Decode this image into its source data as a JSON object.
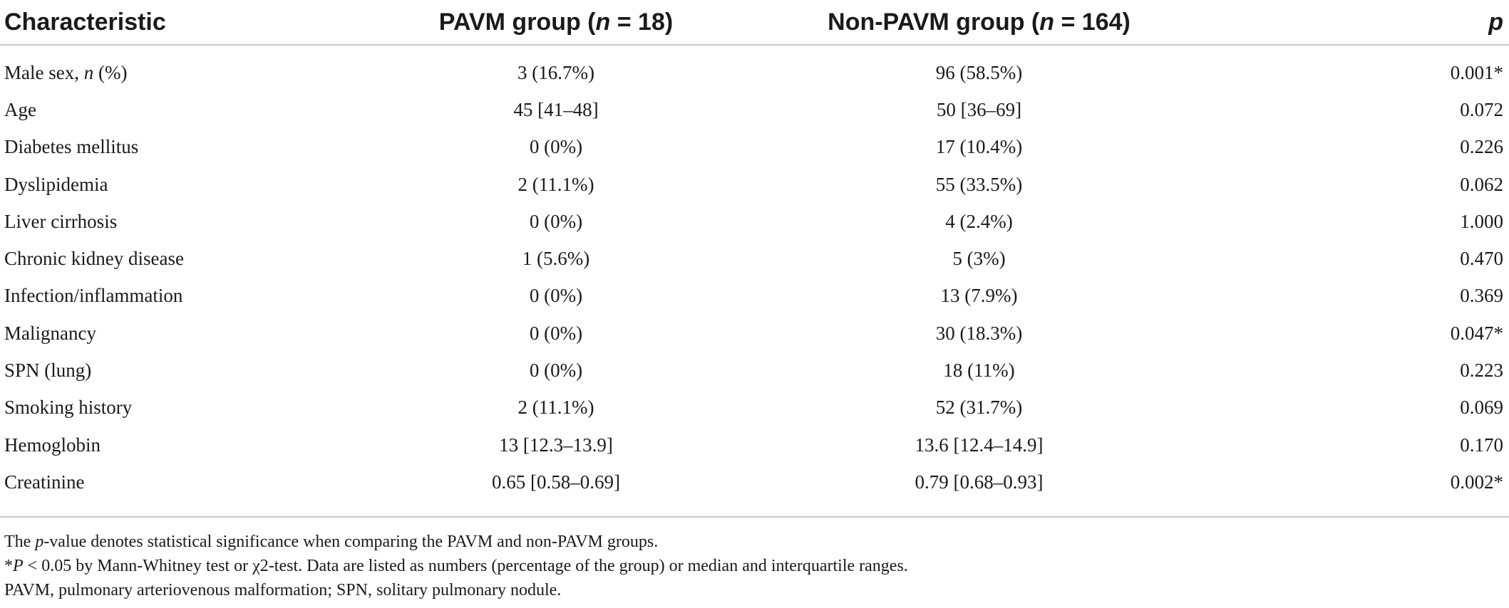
{
  "table": {
    "headers": {
      "characteristic": "Characteristic",
      "pavm_prefix": "PAVM group (",
      "pavm_n": "n",
      "pavm_suffix": " = 18)",
      "non_prefix": "Non-PAVM group (",
      "non_n": "n",
      "non_suffix": " = 164)",
      "p": "p"
    },
    "rows": [
      {
        "characteristic": "Male sex, ",
        "char_italic": "n",
        "char_suffix": " (%)",
        "pavm": "3 (16.7%)",
        "non_pavm": "96 (58.5%)",
        "p": "0.001*"
      },
      {
        "characteristic": "Age",
        "pavm": "45 [41–48]",
        "non_pavm": "50 [36–69]",
        "p": "0.072"
      },
      {
        "characteristic": "Diabetes mellitus",
        "pavm": "0 (0%)",
        "non_pavm": "17 (10.4%)",
        "p": "0.226"
      },
      {
        "characteristic": "Dyslipidemia",
        "pavm": "2 (11.1%)",
        "non_pavm": "55 (33.5%)",
        "p": "0.062"
      },
      {
        "characteristic": "Liver cirrhosis",
        "pavm": "0 (0%)",
        "non_pavm": "4 (2.4%)",
        "p": "1.000"
      },
      {
        "characteristic": "Chronic kidney disease",
        "pavm": "1 (5.6%)",
        "non_pavm": "5 (3%)",
        "p": "0.470"
      },
      {
        "characteristic": "Infection/inflammation",
        "pavm": "0 (0%)",
        "non_pavm": "13 (7.9%)",
        "p": "0.369"
      },
      {
        "characteristic": "Malignancy",
        "pavm": "0 (0%)",
        "non_pavm": "30 (18.3%)",
        "p": "0.047*"
      },
      {
        "characteristic": "SPN (lung)",
        "pavm": "0 (0%)",
        "non_pavm": "18 (11%)",
        "p": "0.223"
      },
      {
        "characteristic": "Smoking history",
        "pavm": "2 (11.1%)",
        "non_pavm": "52 (31.7%)",
        "p": "0.069"
      },
      {
        "characteristic": "Hemoglobin",
        "pavm": "13 [12.3–13.9]",
        "non_pavm": "13.6 [12.4–14.9]",
        "p": "0.170"
      },
      {
        "characteristic": "Creatinine",
        "pavm": "0.65 [0.58–0.69]",
        "non_pavm": "0.79 [0.68–0.93]",
        "p": "0.002*"
      }
    ]
  },
  "footnotes": {
    "note1_prefix": "The ",
    "note1_italic": "p",
    "note1_suffix": "-value denotes statistical significance when comparing the PAVM and non-PAVM groups.",
    "note2_prefix": "*",
    "note2_italic": "P",
    "note2_suffix": " < 0.05 by Mann-Whitney test or χ2-test. Data are listed as numbers (percentage of the group) or median and interquartile ranges.",
    "note3": "PAVM, pulmonary arteriovenous malformation; SPN, solitary pulmonary nodule."
  }
}
